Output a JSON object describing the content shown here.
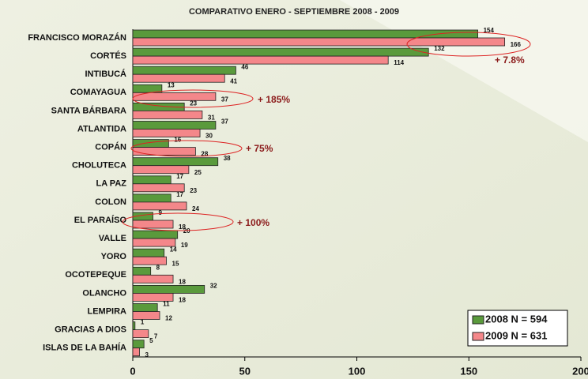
{
  "chart_data": {
    "type": "hbar",
    "title": "COMPARATIVO ENERO - SEPTIEMBRE 2008 - 2009",
    "categories": [
      "FRANCISCO MORAZÁN",
      "CORTÉS",
      "INTIBUCÁ",
      "COMAYAGUA",
      "SANTA BÁRBARA",
      "ATLANTIDA",
      "COPÁN",
      "CHOLUTECA",
      "LA PAZ",
      "COLON",
      "EL PARAÍSO",
      "VALLE",
      "YORO",
      "OCOTEPEQUE",
      "OLANCHO",
      "LEMPIRA",
      "GRACIAS A DIOS",
      "ISLAS DE LA BAHÍA"
    ],
    "series": [
      {
        "name": "2008 N = 594",
        "color": "#5a9a3c",
        "values": [
          154,
          132,
          46,
          13,
          23,
          37,
          16,
          38,
          17,
          17,
          9,
          20,
          14,
          8,
          32,
          11,
          1,
          5
        ]
      },
      {
        "name": "2009 N = 631",
        "color": "#f4878a",
        "values": [
          166,
          114,
          41,
          37,
          31,
          30,
          28,
          25,
          23,
          24,
          18,
          19,
          15,
          18,
          18,
          12,
          7,
          3
        ]
      }
    ],
    "xlim": [
      0,
      200
    ],
    "xticks": [
      0,
      50,
      100,
      150,
      200
    ],
    "annotations": [
      "+ 7.8%",
      "+ 185%",
      "+ 75%",
      "+ 100%"
    ],
    "legend": "lower right"
  }
}
